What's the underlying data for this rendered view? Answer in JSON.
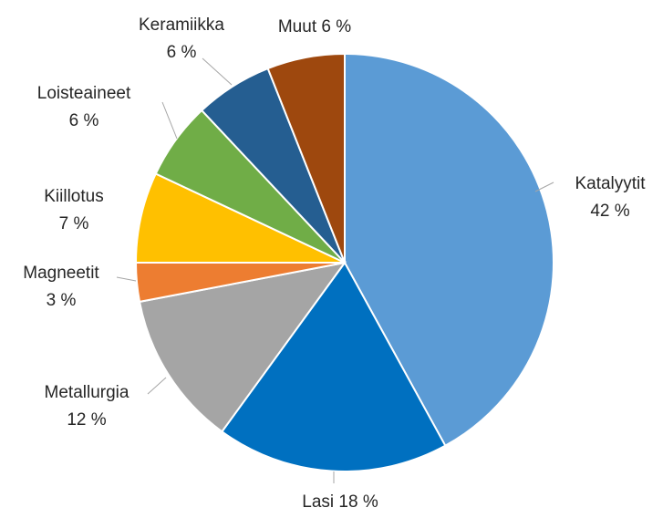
{
  "chart_data": {
    "type": "pie",
    "title": "",
    "start_angle_deg": 0,
    "direction": "clockwise",
    "slices": [
      {
        "label": "Katalyytit",
        "value": 42,
        "display": "42 %",
        "color": "#5b9bd5"
      },
      {
        "label": "Lasi",
        "value": 18,
        "display": "18 %",
        "color": "#0070c0"
      },
      {
        "label": "Metallurgia",
        "value": 12,
        "display": "12 %",
        "color": "#a5a5a5"
      },
      {
        "label": "Magneetit",
        "value": 3,
        "display": "3 %",
        "color": "#ed7d31"
      },
      {
        "label": "Kiillotus",
        "value": 7,
        "display": "7 %",
        "color": "#ffc000"
      },
      {
        "label": "Loisteaineet",
        "value": 6,
        "display": "6 %",
        "color": "#70ad47"
      },
      {
        "label": "Keramiikka",
        "value": 6,
        "display": "6 %",
        "color": "#255e91"
      },
      {
        "label": "Muut",
        "value": 6,
        "display": "6 %",
        "color": "#9e480e"
      }
    ],
    "legend": "none",
    "data_labels": "outside"
  }
}
